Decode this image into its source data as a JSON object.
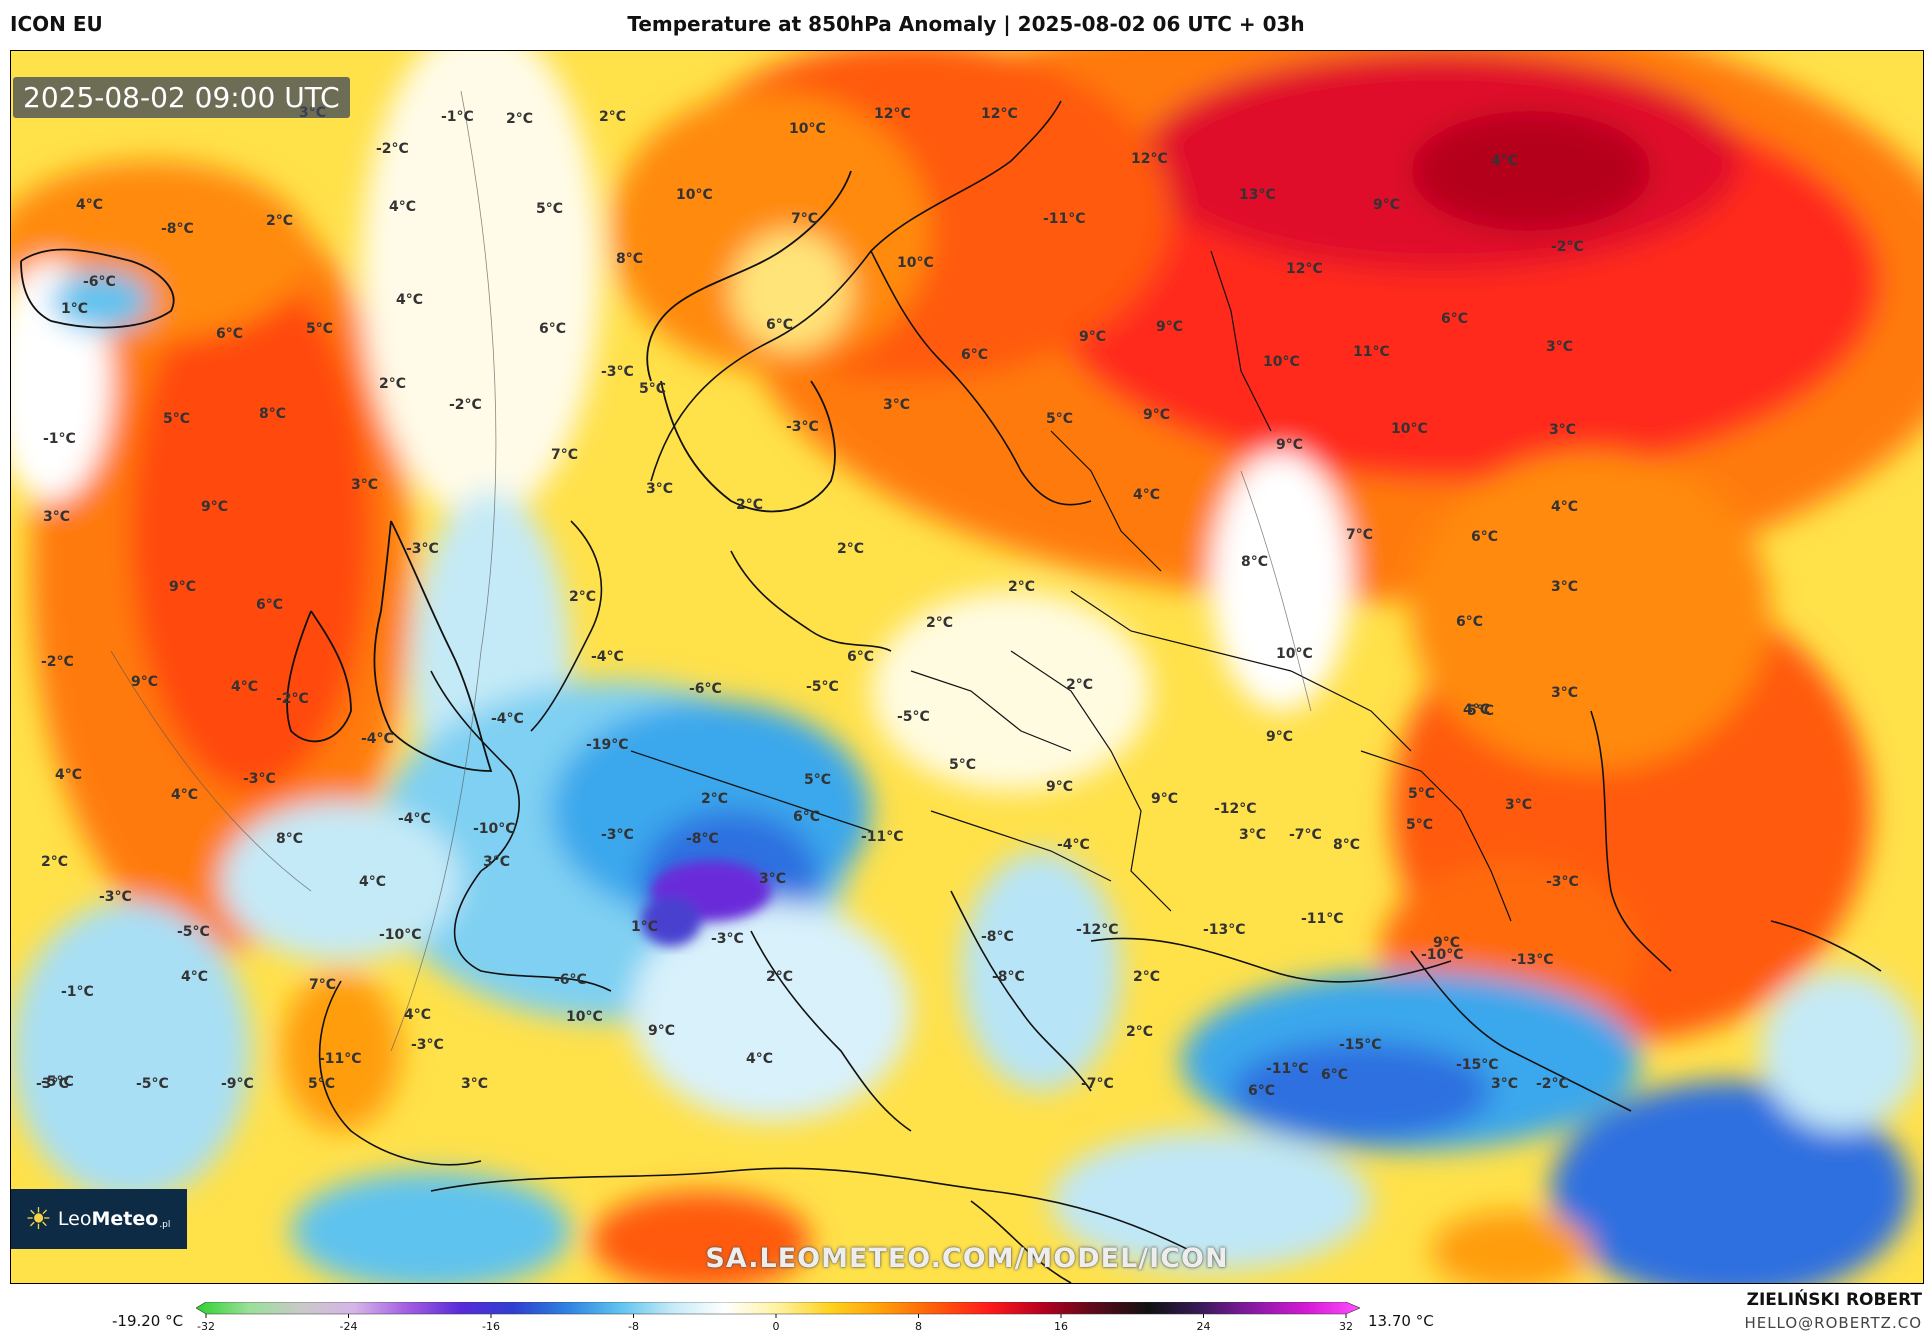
{
  "header": {
    "model": "ICON EU",
    "title": "Temperature at 850hPa Anomaly | 2025-08-02 06 UTC + 03h"
  },
  "map": {
    "timestamp": "2025-08-02 09:00 UTC",
    "watermark": "SA.LEOMETEO.COM/MODEL/ICON",
    "brand": {
      "name_light": "Leo",
      "name_bold": "Meteo",
      "suffix": ".pl"
    },
    "labels": [
      {
        "t": "3°C"
      },
      {
        "t": "-1°C"
      },
      {
        "t": "2°C"
      },
      {
        "t": "2°C"
      },
      {
        "t": "10°C"
      },
      {
        "t": "12°C"
      },
      {
        "t": "12°C"
      },
      {
        "t": "12°C"
      },
      {
        "t": "13°C"
      },
      {
        "t": "4°C"
      },
      {
        "t": "-2°C"
      },
      {
        "t": "4°C"
      },
      {
        "t": "4°C"
      },
      {
        "t": "10°C"
      },
      {
        "t": "5°C"
      },
      {
        "t": "7°C"
      },
      {
        "t": "-11°C"
      },
      {
        "t": "9°C"
      },
      {
        "t": "-2°C"
      },
      {
        "t": "-8°C"
      },
      {
        "t": "2°C"
      },
      {
        "t": "-6°C"
      },
      {
        "t": "8°C"
      },
      {
        "t": "10°C"
      },
      {
        "t": "12°C"
      },
      {
        "t": "1°C"
      },
      {
        "t": "4°C"
      },
      {
        "t": "6°C"
      },
      {
        "t": "5°C"
      },
      {
        "t": "6°C"
      },
      {
        "t": "6°C"
      },
      {
        "t": "9°C"
      },
      {
        "t": "9°C"
      },
      {
        "t": "6°C"
      },
      {
        "t": "6°C"
      },
      {
        "t": "3°C"
      },
      {
        "t": "-3°C"
      },
      {
        "t": "5°C"
      },
      {
        "t": "10°C"
      },
      {
        "t": "11°C"
      },
      {
        "t": "2°C"
      },
      {
        "t": "-2°C"
      },
      {
        "t": "5°C"
      },
      {
        "t": "8°C"
      },
      {
        "t": "-3°C"
      },
      {
        "t": "3°C"
      },
      {
        "t": "9°C"
      },
      {
        "t": "5°C"
      },
      {
        "t": "10°C"
      },
      {
        "t": "3°C"
      },
      {
        "t": "-1°C"
      },
      {
        "t": "7°C"
      },
      {
        "t": "9°C"
      },
      {
        "t": "3°C"
      },
      {
        "t": "3°C"
      },
      {
        "t": "4°C"
      },
      {
        "t": "2°C"
      },
      {
        "t": "9°C"
      },
      {
        "t": "4°C"
      },
      {
        "t": "3°C"
      },
      {
        "t": "-3°C"
      },
      {
        "t": "7°C"
      },
      {
        "t": "6°C"
      },
      {
        "t": "2°C"
      },
      {
        "t": "8°C"
      },
      {
        "t": "9°C"
      },
      {
        "t": "2°C"
      },
      {
        "t": "2°C"
      },
      {
        "t": "3°C"
      },
      {
        "t": "6°C"
      },
      {
        "t": "-2°C"
      },
      {
        "t": "4°C"
      },
      {
        "t": "2°C"
      },
      {
        "t": "10°C"
      },
      {
        "t": "6°C"
      },
      {
        "t": "9°C"
      },
      {
        "t": "-4°C"
      },
      {
        "t": "6°C"
      },
      {
        "t": "4°C"
      },
      {
        "t": "-2°C"
      },
      {
        "t": "-5°C"
      },
      {
        "t": "2°C"
      },
      {
        "t": "-6°C"
      },
      {
        "t": "-5°C"
      },
      {
        "t": "9°C"
      },
      {
        "t": "5°C"
      },
      {
        "t": "3°C"
      },
      {
        "t": "-4°C"
      },
      {
        "t": "-4°C"
      },
      {
        "t": "-19°C"
      },
      {
        "t": "5°C"
      },
      {
        "t": "5°C"
      },
      {
        "t": "9°C"
      },
      {
        "t": "4°C"
      },
      {
        "t": "-3°C"
      },
      {
        "t": "4°C"
      },
      {
        "t": "2°C"
      },
      {
        "t": "5°C"
      },
      {
        "t": "3°C"
      },
      {
        "t": "9°C"
      },
      {
        "t": "-12°C"
      },
      {
        "t": "-4°C"
      },
      {
        "t": "-10°C"
      },
      {
        "t": "6°C"
      },
      {
        "t": "8°C"
      },
      {
        "t": "-3°C"
      },
      {
        "t": "-8°C"
      },
      {
        "t": "-11°C"
      },
      {
        "t": "3°C"
      },
      {
        "t": "-7°C"
      },
      {
        "t": "5°C"
      },
      {
        "t": "2°C"
      },
      {
        "t": "3°C"
      },
      {
        "t": "4°C"
      },
      {
        "t": "3°C"
      },
      {
        "t": "-4°C"
      },
      {
        "t": "8°C"
      },
      {
        "t": "-3°C"
      },
      {
        "t": "-3°C"
      },
      {
        "t": "-5°C"
      },
      {
        "t": "-10°C"
      },
      {
        "t": "1°C"
      },
      {
        "t": "-3°C"
      },
      {
        "t": "-8°C"
      },
      {
        "t": "-12°C"
      },
      {
        "t": "-13°C"
      },
      {
        "t": "-11°C"
      },
      {
        "t": "9°C"
      },
      {
        "t": "-10°C"
      },
      {
        "t": "-13°C"
      },
      {
        "t": "4°C"
      },
      {
        "t": "7°C"
      },
      {
        "t": "-1°C"
      },
      {
        "t": "-6°C"
      },
      {
        "t": "2°C"
      },
      {
        "t": "-8°C"
      },
      {
        "t": "2°C"
      },
      {
        "t": "4°C"
      },
      {
        "t": "10°C"
      },
      {
        "t": "9°C"
      },
      {
        "t": "-11°C"
      },
      {
        "t": "-3°C"
      },
      {
        "t": "2°C"
      },
      {
        "t": "-15°C"
      },
      {
        "t": "-11°C"
      },
      {
        "t": "-3°C"
      },
      {
        "t": "6°C"
      },
      {
        "t": "4°C"
      },
      {
        "t": "-15°C"
      },
      {
        "t": "-5°C"
      },
      {
        "t": "-5°C"
      },
      {
        "t": "-9°C"
      },
      {
        "t": "5°C"
      },
      {
        "t": "3°C"
      },
      {
        "t": "-7°C"
      },
      {
        "t": "6°C"
      },
      {
        "t": "3°C"
      },
      {
        "t": "-2°C"
      }
    ]
  },
  "colorbar": {
    "min_label": "-19.20 °C",
    "max_label": "13.70 °C",
    "ticks": [
      "-32",
      "-24",
      "-16",
      "-8",
      "0",
      "8",
      "16",
      "24",
      "32"
    ],
    "stops": [
      "#2fd12f",
      "#9adf9a",
      "#c9c9c9",
      "#d6b4e8",
      "#a25ee0",
      "#5a2bd9",
      "#2f3fd0",
      "#2e82e0",
      "#5ec3ef",
      "#c5eaf7",
      "#ffffff",
      "#fff2a0",
      "#ffd21f",
      "#ff9d0a",
      "#ff5a0a",
      "#ff1a1a",
      "#b5001f",
      "#5a0a1a",
      "#111111",
      "#3a1a5a",
      "#8a1aa5",
      "#d51ad5",
      "#ff50ff"
    ]
  },
  "footer": {
    "author": "ZIELIŃSKI ROBERT",
    "email": "HELLO@ROBERTZ.CO"
  }
}
